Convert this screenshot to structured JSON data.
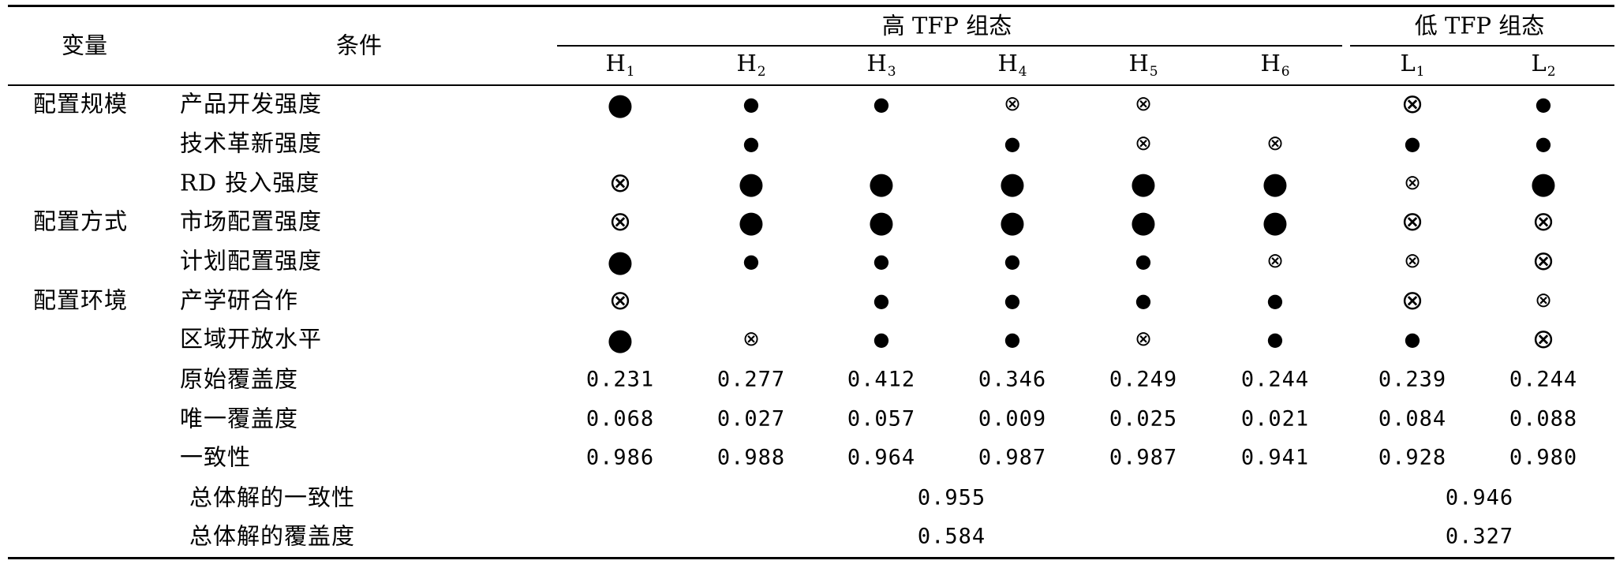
{
  "headers": {
    "variable": "变量",
    "condition": "条件",
    "high_group": "高 TFP 组态",
    "low_group": "低 TFP 组态"
  },
  "configs": [
    {
      "letter": "H",
      "sub": "1"
    },
    {
      "letter": "H",
      "sub": "2"
    },
    {
      "letter": "H",
      "sub": "3"
    },
    {
      "letter": "H",
      "sub": "4"
    },
    {
      "letter": "H",
      "sub": "5"
    },
    {
      "letter": "H",
      "sub": "6"
    },
    {
      "letter": "L",
      "sub": "1"
    },
    {
      "letter": "L",
      "sub": "2"
    }
  ],
  "symbols": {
    "core_present": "●",
    "edge_present": "●",
    "core_absent": "⊗",
    "edge_absent": "⊗"
  },
  "rows": [
    {
      "variable": "配置规模",
      "condition": "产品开发强度",
      "cells": [
        "core_present",
        "edge_present",
        "edge_present",
        "edge_absent",
        "edge_absent",
        "",
        "core_absent",
        "edge_present"
      ]
    },
    {
      "variable": "",
      "condition": "技术革新强度",
      "cells": [
        "",
        "edge_present",
        "",
        "edge_present",
        "edge_absent",
        "edge_absent",
        "edge_present",
        "edge_present"
      ]
    },
    {
      "variable": "",
      "condition": "RD 投入强度",
      "cells": [
        "core_absent",
        "core_present",
        "core_present",
        "core_present",
        "core_present",
        "core_present",
        "edge_absent",
        "core_present"
      ]
    },
    {
      "variable": "配置方式",
      "condition": "市场配置强度",
      "cells": [
        "core_absent",
        "core_present",
        "core_present",
        "core_present",
        "core_present",
        "core_present",
        "core_absent",
        "core_absent"
      ]
    },
    {
      "variable": "",
      "condition": "计划配置强度",
      "cells": [
        "core_present",
        "edge_present",
        "edge_present",
        "edge_present",
        "edge_present",
        "edge_absent",
        "edge_absent",
        "core_absent"
      ]
    },
    {
      "variable": "配置环境",
      "condition": "产学研合作",
      "cells": [
        "core_absent",
        "",
        "edge_present",
        "edge_present",
        "edge_present",
        "edge_present",
        "core_absent",
        "edge_absent"
      ]
    },
    {
      "variable": "",
      "condition": "区域开放水平",
      "cells": [
        "core_present",
        "edge_absent",
        "edge_present",
        "edge_present",
        "edge_absent",
        "edge_present",
        "edge_present",
        "core_absent"
      ]
    }
  ],
  "metrics": [
    {
      "label": "原始覆盖度",
      "values": [
        "0.231",
        "0.277",
        "0.412",
        "0.346",
        "0.249",
        "0.244",
        "0.239",
        "0.244"
      ]
    },
    {
      "label": "唯一覆盖度",
      "values": [
        "0.068",
        "0.027",
        "0.057",
        "0.009",
        "0.025",
        "0.021",
        "0.084",
        "0.088"
      ]
    },
    {
      "label": "一致性",
      "values": [
        "0.986",
        "0.988",
        "0.964",
        "0.987",
        "0.987",
        "0.941",
        "0.928",
        "0.980"
      ]
    }
  ],
  "overall": [
    {
      "label": "总体解的一致性",
      "high": "0.955",
      "low": "0.946"
    },
    {
      "label": "总体解的覆盖度",
      "high": "0.584",
      "low": "0.327"
    }
  ]
}
